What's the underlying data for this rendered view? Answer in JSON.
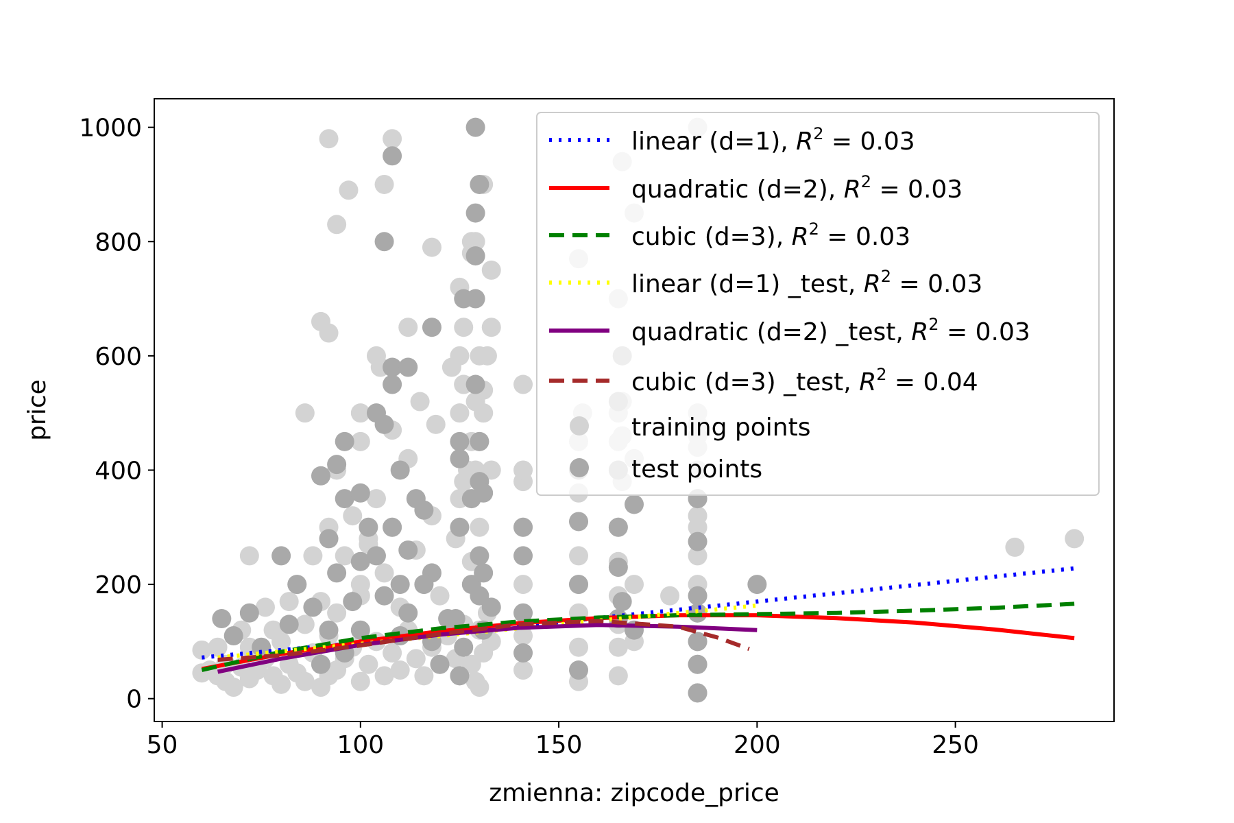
{
  "chart_data": {
    "type": "scatter",
    "title": "",
    "xlabel": "zmienna: zipcode_price",
    "ylabel": "price",
    "xlim": [
      48,
      290
    ],
    "ylim": [
      -40,
      1050
    ],
    "x_ticks": [
      50,
      100,
      150,
      200,
      250
    ],
    "y_ticks": [
      0,
      200,
      400,
      600,
      800,
      1000
    ],
    "grid": false,
    "legend_position": "top-right",
    "colors": {
      "training_points": "#d3d3d3",
      "test_points": "#a9a9a9",
      "linear": "#0000ff",
      "quadratic": "#ff0000",
      "cubic": "#008000",
      "linear_test": "#ffff00",
      "quadratic_test": "#800080",
      "cubic_test": "#a52a2a"
    },
    "legend": [
      {
        "key": "linear",
        "prefix": "linear (d=1), ",
        "r2": "0.03"
      },
      {
        "key": "quadratic",
        "prefix": "quadratic (d=2), ",
        "r2": "0.03"
      },
      {
        "key": "cubic",
        "prefix": "cubic (d=3), ",
        "r2": "0.03"
      },
      {
        "key": "linear_test",
        "prefix": "linear (d=1) _test, ",
        "r2": "0.03"
      },
      {
        "key": "quadratic_test",
        "prefix": "quadratic (d=2) _test, ",
        "r2": "0.03"
      },
      {
        "key": "cubic_test",
        "prefix": "cubic (d=3) _test, ",
        "r2": "0.04"
      },
      {
        "key": "training_points",
        "label": "training points"
      },
      {
        "key": "test_points",
        "label": "test points"
      }
    ],
    "r2_symbol": "R",
    "r2_exponent": "2",
    "r2_equals": " = ",
    "series_lines": [
      {
        "key": "linear",
        "style": "dotted",
        "x": [
          60,
          100,
          150,
          200,
          280
        ],
        "y": [
          72,
          98,
          134,
          170,
          228
        ]
      },
      {
        "key": "quadratic",
        "style": "solid",
        "x": [
          60,
          80,
          100,
          120,
          140,
          160,
          180,
          200,
          220,
          240,
          260,
          280
        ],
        "y": [
          52,
          78,
          100,
          118,
          132,
          141,
          146,
          146,
          141,
          133,
          121,
          106
        ]
      },
      {
        "key": "cubic",
        "style": "dashed",
        "x": [
          60,
          80,
          100,
          120,
          140,
          160,
          180,
          200,
          220,
          240,
          260,
          280
        ],
        "y": [
          50,
          82,
          106,
          123,
          135,
          142,
          146,
          148,
          150,
          154,
          159,
          166
        ]
      },
      {
        "key": "linear_test",
        "style": "dotted",
        "x": [
          64,
          100,
          150,
          200
        ],
        "y": [
          72,
          96,
          130,
          163
        ]
      },
      {
        "key": "quadratic_test",
        "style": "solid",
        "x": [
          64,
          80,
          100,
          120,
          140,
          160,
          180,
          200
        ],
        "y": [
          47,
          70,
          94,
          112,
          124,
          129,
          126,
          120
        ]
      },
      {
        "key": "cubic_test",
        "style": "dashed",
        "x": [
          64,
          80,
          100,
          120,
          140,
          160,
          180,
          190,
          198
        ],
        "y": [
          68,
          76,
          93,
          113,
          130,
          136,
          126,
          107,
          87
        ]
      }
    ],
    "training_points": {
      "x": [
        60,
        60,
        62,
        64,
        64,
        66,
        66,
        68,
        70,
        70,
        72,
        72,
        74,
        76,
        76,
        78,
        78,
        80,
        80,
        82,
        82,
        84,
        84,
        86,
        86,
        88,
        88,
        90,
        90,
        90,
        92,
        92,
        92,
        94,
        94,
        94,
        96,
        96,
        98,
        98,
        100,
        100,
        100,
        102,
        102,
        104,
        104,
        106,
        106,
        108,
        108,
        110,
        110,
        112,
        112,
        114,
        114,
        116,
        116,
        118,
        118,
        120,
        120,
        122,
        124,
        124,
        125,
        125,
        126,
        126,
        126,
        128,
        128,
        128,
        129,
        129,
        130,
        130,
        130,
        130,
        131,
        131,
        132,
        132,
        133,
        133,
        141,
        141,
        141,
        141,
        141,
        141,
        155,
        155,
        155,
        155,
        155,
        155,
        155,
        155,
        165,
        165,
        165,
        165,
        165,
        165,
        165,
        165,
        165,
        166,
        166,
        166,
        169,
        169,
        169,
        178,
        185,
        185,
        185,
        185,
        185,
        185,
        185,
        185,
        185,
        185,
        185,
        265,
        280,
        72,
        86,
        90,
        92,
        94,
        97,
        100,
        104,
        106,
        108,
        118,
        125,
        126,
        128,
        129,
        130,
        131,
        133,
        125,
        141,
        155,
        156,
        165,
        166,
        169,
        185,
        185,
        185,
        185,
        112,
        105,
        125,
        128,
        131,
        126,
        129,
        119,
        92,
        108,
        115,
        123,
        127,
        131,
        133,
        100,
        102
      ],
      "y": [
        85,
        45,
        50,
        40,
        90,
        30,
        60,
        20,
        55,
        120,
        35,
        90,
        50,
        70,
        160,
        40,
        120,
        25,
        100,
        60,
        170,
        45,
        200,
        30,
        130,
        80,
        250,
        20,
        60,
        170,
        40,
        110,
        300,
        50,
        150,
        400,
        70,
        250,
        90,
        320,
        30,
        180,
        450,
        60,
        280,
        100,
        350,
        40,
        220,
        80,
        300,
        50,
        160,
        120,
        420,
        70,
        260,
        40,
        200,
        90,
        320,
        60,
        180,
        110,
        70,
        280,
        40,
        500,
        130,
        380,
        650,
        60,
        240,
        780,
        30,
        520,
        20,
        120,
        300,
        450,
        80,
        900,
        150,
        600,
        100,
        400,
        50,
        110,
        200,
        300,
        380,
        400,
        30,
        90,
        150,
        200,
        250,
        360,
        450,
        770,
        40,
        90,
        130,
        180,
        240,
        300,
        400,
        500,
        700,
        460,
        520,
        940,
        100,
        200,
        850,
        180,
        10,
        60,
        100,
        150,
        200,
        250,
        300,
        350,
        400,
        500,
        1000,
        265,
        280,
        250,
        500,
        660,
        980,
        830,
        890,
        500,
        600,
        900,
        980,
        790,
        720,
        550,
        800,
        800,
        600,
        500,
        750,
        350,
        550,
        400,
        500,
        450,
        380,
        420,
        320,
        440,
        460,
        480,
        650,
        580,
        600,
        450,
        500,
        550,
        400,
        480,
        640,
        470,
        520,
        580,
        400,
        540,
        650,
        200,
        270
      ]
    },
    "test_points": {
      "x": [
        65,
        68,
        72,
        75,
        80,
        82,
        84,
        88,
        90,
        90,
        92,
        94,
        94,
        96,
        96,
        98,
        100,
        100,
        102,
        104,
        104,
        106,
        106,
        108,
        108,
        108,
        110,
        110,
        112,
        112,
        114,
        116,
        118,
        118,
        120,
        124,
        125,
        125,
        125,
        126,
        126,
        128,
        128,
        129,
        129,
        129,
        129,
        129,
        130,
        130,
        130,
        130,
        130,
        131,
        131,
        131,
        133,
        141,
        141,
        141,
        141,
        155,
        155,
        155,
        155,
        165,
        165,
        165,
        165,
        165,
        166,
        166,
        169,
        169,
        185,
        185,
        185,
        185,
        185,
        185,
        185,
        200,
        108,
        112,
        118,
        92,
        100,
        106,
        116,
        122,
        96,
        110,
        125
      ],
      "y": [
        140,
        110,
        150,
        90,
        250,
        130,
        200,
        160,
        60,
        390,
        120,
        220,
        410,
        350,
        450,
        170,
        120,
        360,
        300,
        250,
        500,
        800,
        180,
        950,
        550,
        580,
        200,
        400,
        150,
        580,
        350,
        330,
        220,
        650,
        60,
        140,
        450,
        300,
        420,
        90,
        700,
        350,
        200,
        1000,
        850,
        775,
        700,
        550,
        450,
        380,
        900,
        250,
        180,
        360,
        120,
        220,
        160,
        300,
        250,
        150,
        80,
        400,
        310,
        200,
        50,
        230,
        300,
        400,
        520,
        140,
        600,
        170,
        340,
        120,
        10,
        60,
        100,
        150,
        275,
        180,
        350,
        200,
        300,
        260,
        100,
        280,
        240,
        480,
        200,
        140,
        80,
        110,
        40
      ]
    }
  }
}
